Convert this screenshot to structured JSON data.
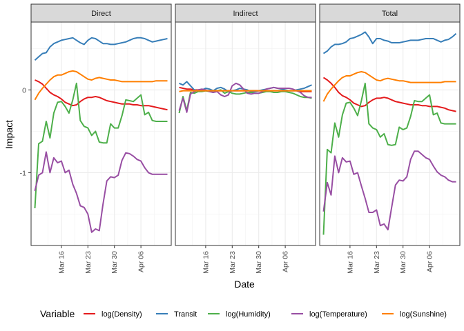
{
  "chart_data": {
    "type": "line",
    "facet_by": "Effect",
    "panels": [
      "Direct",
      "Indirect",
      "Total"
    ],
    "xlabel": "Date",
    "ylabel": "Impact",
    "x_ticks": [
      "Mar 16",
      "Mar 23",
      "Mar 30",
      "Apr 06"
    ],
    "x_tick_values": [
      "2020-03-16",
      "2020-03-23",
      "2020-03-30",
      "2020-04-06"
    ],
    "y_ticks": [
      "0",
      "-1"
    ],
    "y_tick_values": [
      0,
      -1
    ],
    "xlim": [
      "2020-03-08",
      "2020-04-14"
    ],
    "ylim": [
      -1.88,
      0.82
    ],
    "grid": true,
    "legend": {
      "title": "Variable",
      "position": "bottom"
    },
    "x": [
      "2020-03-09",
      "2020-03-10",
      "2020-03-11",
      "2020-03-12",
      "2020-03-13",
      "2020-03-14",
      "2020-03-15",
      "2020-03-16",
      "2020-03-17",
      "2020-03-18",
      "2020-03-19",
      "2020-03-20",
      "2020-03-21",
      "2020-03-22",
      "2020-03-23",
      "2020-03-24",
      "2020-03-25",
      "2020-03-26",
      "2020-03-27",
      "2020-03-28",
      "2020-03-29",
      "2020-03-30",
      "2020-03-31",
      "2020-04-01",
      "2020-04-02",
      "2020-04-03",
      "2020-04-04",
      "2020-04-05",
      "2020-04-06",
      "2020-04-07",
      "2020-04-08",
      "2020-04-09",
      "2020-04-10",
      "2020-04-11",
      "2020-04-12",
      "2020-04-13"
    ],
    "series": [
      {
        "name": "log(Density)",
        "color": "#e41a1c",
        "values": {
          "Direct": [
            0.12,
            0.1,
            0.07,
            0.02,
            -0.03,
            -0.06,
            -0.08,
            -0.11,
            -0.15,
            -0.17,
            -0.19,
            -0.18,
            -0.14,
            -0.11,
            -0.09,
            -0.09,
            -0.08,
            -0.09,
            -0.11,
            -0.13,
            -0.14,
            -0.15,
            -0.16,
            -0.17,
            -0.17,
            -0.17,
            -0.18,
            -0.18,
            -0.19,
            -0.19,
            -0.19,
            -0.2,
            -0.21,
            -0.22,
            -0.23,
            -0.24
          ],
          "Indirect": [
            0.03,
            0.02,
            0.01,
            0.01,
            0.0,
            0.0,
            0.0,
            -0.01,
            -0.01,
            -0.01,
            -0.01,
            -0.01,
            -0.01,
            -0.01,
            -0.01,
            -0.01,
            -0.01,
            -0.01,
            -0.01,
            -0.01,
            -0.01,
            -0.01,
            -0.01,
            -0.01,
            -0.01,
            -0.01,
            -0.01,
            -0.01,
            -0.01,
            -0.01,
            -0.01,
            -0.01,
            -0.02,
            -0.02,
            -0.02,
            -0.02
          ],
          "Total": [
            0.15,
            0.12,
            0.08,
            0.03,
            -0.03,
            -0.07,
            -0.09,
            -0.12,
            -0.16,
            -0.18,
            -0.2,
            -0.19,
            -0.15,
            -0.12,
            -0.1,
            -0.1,
            -0.09,
            -0.1,
            -0.12,
            -0.14,
            -0.15,
            -0.16,
            -0.17,
            -0.18,
            -0.18,
            -0.18,
            -0.19,
            -0.19,
            -0.2,
            -0.2,
            -0.2,
            -0.21,
            -0.22,
            -0.24,
            -0.25,
            -0.26
          ]
        }
      },
      {
        "name": "Transit",
        "color": "#377eb8",
        "values": {
          "Direct": [
            0.36,
            0.4,
            0.44,
            0.45,
            0.52,
            0.56,
            0.58,
            0.6,
            0.61,
            0.62,
            0.63,
            0.6,
            0.57,
            0.55,
            0.6,
            0.63,
            0.62,
            0.59,
            0.56,
            0.56,
            0.55,
            0.55,
            0.56,
            0.57,
            0.58,
            0.6,
            0.62,
            0.63,
            0.63,
            0.62,
            0.6,
            0.58,
            0.59,
            0.6,
            0.61,
            0.62
          ],
          "Indirect": [
            0.08,
            0.06,
            0.1,
            0.05,
            0.0,
            -0.01,
            0.0,
            0.02,
            0.01,
            -0.01,
            0.02,
            0.03,
            0.01,
            -0.02,
            -0.01,
            0.0,
            0.02,
            0.01,
            0.0,
            -0.02,
            -0.02,
            -0.01,
            0.0,
            0.01,
            0.02,
            0.03,
            0.02,
            0.01,
            0.0,
            -0.01,
            -0.01,
            0.0,
            0.01,
            0.02,
            0.04,
            0.06
          ],
          "Total": [
            0.44,
            0.47,
            0.52,
            0.55,
            0.55,
            0.56,
            0.58,
            0.62,
            0.63,
            0.65,
            0.67,
            0.7,
            0.64,
            0.56,
            0.62,
            0.62,
            0.6,
            0.59,
            0.57,
            0.57,
            0.57,
            0.58,
            0.59,
            0.6,
            0.6,
            0.6,
            0.61,
            0.62,
            0.62,
            0.62,
            0.6,
            0.58,
            0.6,
            0.61,
            0.64,
            0.68
          ]
        }
      },
      {
        "name": "log(Humidity)",
        "color": "#4daf4a",
        "values": {
          "Direct": [
            -1.43,
            -0.65,
            -0.62,
            -0.38,
            -0.58,
            -0.28,
            -0.15,
            -0.14,
            -0.2,
            -0.28,
            -0.12,
            0.08,
            -0.37,
            -0.44,
            -0.46,
            -0.55,
            -0.5,
            -0.63,
            -0.64,
            -0.64,
            -0.41,
            -0.46,
            -0.46,
            -0.31,
            -0.12,
            -0.13,
            -0.14,
            -0.1,
            -0.06,
            -0.3,
            -0.27,
            -0.37,
            -0.38,
            -0.38,
            -0.38,
            -0.38
          ],
          "Indirect": [
            -0.28,
            -0.08,
            -0.25,
            -0.03,
            -0.04,
            -0.02,
            -0.02,
            -0.01,
            -0.02,
            -0.03,
            -0.01,
            0.0,
            -0.04,
            -0.02,
            -0.04,
            -0.05,
            -0.05,
            -0.04,
            -0.03,
            -0.03,
            -0.04,
            -0.04,
            -0.03,
            -0.02,
            -0.02,
            -0.03,
            -0.03,
            -0.02,
            -0.02,
            -0.03,
            -0.04,
            -0.06,
            -0.08,
            -0.09,
            -0.09,
            -0.1
          ],
          "Total": [
            -1.75,
            -0.72,
            -0.76,
            -0.4,
            -0.57,
            -0.3,
            -0.16,
            -0.15,
            -0.22,
            -0.31,
            -0.13,
            0.08,
            -0.41,
            -0.46,
            -0.48,
            -0.57,
            -0.53,
            -0.66,
            -0.67,
            -0.66,
            -0.45,
            -0.48,
            -0.46,
            -0.32,
            -0.13,
            -0.14,
            -0.14,
            -0.1,
            -0.06,
            -0.3,
            -0.28,
            -0.4,
            -0.41,
            -0.41,
            -0.41,
            -0.41
          ]
        }
      },
      {
        "name": "log(Temperature)",
        "color": "#984ea3",
        "values": {
          "Direct": [
            -1.22,
            -1.03,
            -1.0,
            -0.75,
            -1.0,
            -0.82,
            -0.88,
            -0.86,
            -1.0,
            -0.97,
            -1.14,
            -1.25,
            -1.4,
            -1.42,
            -1.5,
            -1.72,
            -1.68,
            -1.7,
            -1.38,
            -1.1,
            -1.05,
            -1.06,
            -1.03,
            -0.85,
            -0.76,
            -0.77,
            -0.8,
            -0.84,
            -0.86,
            -0.94,
            -1.0,
            -1.02,
            -1.02,
            -1.02,
            -1.02,
            -1.02
          ],
          "Indirect": [
            -0.25,
            -0.1,
            -0.27,
            -0.05,
            -0.02,
            0.0,
            0.01,
            0.0,
            -0.02,
            -0.03,
            -0.02,
            -0.06,
            -0.08,
            -0.06,
            0.05,
            0.08,
            0.06,
            0.01,
            -0.04,
            -0.05,
            -0.04,
            -0.04,
            -0.02,
            0.01,
            0.02,
            0.03,
            0.02,
            0.02,
            0.02,
            0.02,
            0.01,
            -0.01,
            -0.03,
            -0.07,
            -0.09,
            -0.09
          ],
          "Total": [
            -1.47,
            -1.12,
            -1.27,
            -0.8,
            -1.0,
            -0.82,
            -0.87,
            -0.86,
            -1.02,
            -1.0,
            -1.16,
            -1.31,
            -1.48,
            -1.48,
            -1.45,
            -1.64,
            -1.62,
            -1.69,
            -1.42,
            -1.15,
            -1.09,
            -1.1,
            -1.05,
            -0.84,
            -0.74,
            -0.74,
            -0.78,
            -0.82,
            -0.84,
            -0.92,
            -0.99,
            -1.03,
            -1.05,
            -1.09,
            -1.11,
            -1.11
          ]
        }
      },
      {
        "name": "log(Sunshine)",
        "color": "#ff7f00",
        "values": {
          "Direct": [
            -0.12,
            -0.04,
            0.02,
            0.07,
            0.12,
            0.16,
            0.18,
            0.18,
            0.2,
            0.22,
            0.23,
            0.22,
            0.19,
            0.16,
            0.13,
            0.12,
            0.14,
            0.15,
            0.14,
            0.13,
            0.12,
            0.12,
            0.11,
            0.1,
            0.1,
            0.1,
            0.1,
            0.1,
            0.1,
            0.1,
            0.1,
            0.1,
            0.11,
            0.11,
            0.11,
            0.11
          ],
          "Indirect": [
            -0.02,
            -0.01,
            -0.01,
            -0.01,
            -0.01,
            -0.01,
            -0.01,
            -0.01,
            -0.01,
            -0.01,
            -0.01,
            -0.01,
            -0.01,
            -0.01,
            -0.01,
            -0.01,
            -0.01,
            -0.01,
            -0.01,
            -0.01,
            -0.01,
            -0.01,
            -0.01,
            -0.01,
            -0.01,
            -0.01,
            -0.01,
            -0.01,
            -0.01,
            -0.01,
            -0.01,
            -0.01,
            -0.01,
            -0.01,
            -0.01,
            -0.01
          ],
          "Total": [
            -0.14,
            -0.05,
            0.01,
            0.06,
            0.11,
            0.15,
            0.17,
            0.17,
            0.19,
            0.21,
            0.22,
            0.21,
            0.18,
            0.15,
            0.12,
            0.11,
            0.13,
            0.14,
            0.13,
            0.12,
            0.11,
            0.11,
            0.1,
            0.09,
            0.09,
            0.09,
            0.09,
            0.09,
            0.09,
            0.09,
            0.09,
            0.09,
            0.1,
            0.1,
            0.1,
            0.1
          ]
        }
      }
    ]
  }
}
